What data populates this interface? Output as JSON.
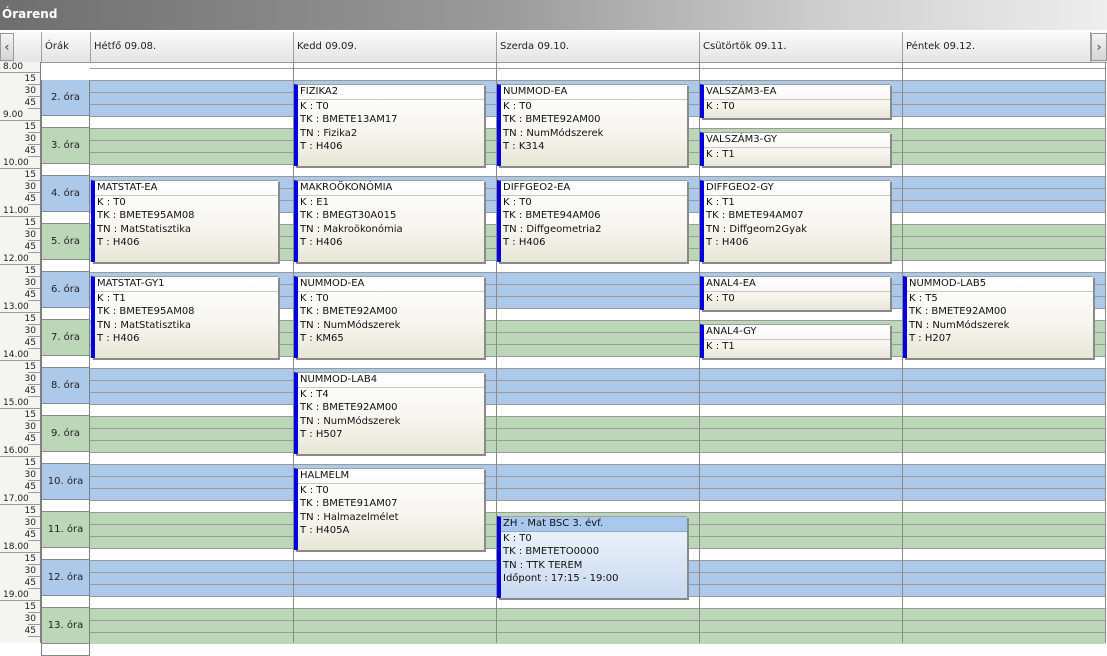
{
  "window": {
    "title": "Órarend"
  },
  "header": {
    "prev_icon": "chevron-left-icon",
    "next_icon": "chevron-right-icon",
    "prev_glyph": "‹",
    "next_glyph": "›",
    "col_label": "Órák",
    "days": [
      "Hétfő  09.08.",
      "Kedd  09.09.",
      "Szerda  09.10.",
      "Csütörtök  09.11.",
      "Péntek  09.12."
    ]
  },
  "time_labels": [
    "8.00",
    "15",
    "30",
    "45",
    "9.00",
    "15",
    "30",
    "45",
    "10.00",
    "15",
    "30",
    "45",
    "11.00",
    "15",
    "30",
    "45",
    "12.00",
    "15",
    "30",
    "45",
    "13.00",
    "15",
    "30",
    "45",
    "14.00",
    "15",
    "30",
    "45",
    "15.00",
    "15",
    "30",
    "45",
    "16.00",
    "15",
    "30",
    "45",
    "17.00",
    "15",
    "30",
    "45",
    "18.00",
    "15",
    "30",
    "45",
    "19.00",
    "15",
    "30",
    "45"
  ],
  "ora_labels": [
    "2. óra",
    "3. óra",
    "4. óra",
    "5. óra",
    "6. óra",
    "7. óra",
    "8. óra",
    "9. óra",
    "10. óra",
    "11. óra",
    "12. óra",
    "13. óra"
  ],
  "colors": {
    "blue_band": "#adc9ea",
    "green_band": "#bcd7b8",
    "white_band": "#ffffff",
    "event_bar": "#0000e0",
    "zh_header": "#a8c8ee"
  },
  "events": [
    {
      "title": "MATSTAT-EA",
      "lines": [
        "K : T0",
        "TK : BMETE95AM08",
        "TN : MatStatisztika",
        "T : H406"
      ]
    },
    {
      "title": "MATSTAT-GY1",
      "lines": [
        "K : T1",
        "TK : BMETE95AM08",
        "TN : MatStatisztika",
        "T : H406"
      ]
    },
    {
      "title": "FIZIKA2",
      "lines": [
        "K : T0",
        "TK : BMETE13AM17",
        "TN : Fizika2",
        "T : H406"
      ]
    },
    {
      "title": "MAKROÖKONÓMIA",
      "lines": [
        "K : E1",
        "TK : BMEGT30A015",
        "TN : Makroökonómia",
        "T : H406"
      ]
    },
    {
      "title": "NUMMOD-EA",
      "lines": [
        "K : T0",
        "TK : BMETE92AM00",
        "TN : NumMódszerek",
        "T : KM65"
      ]
    },
    {
      "title": "NUMMOD-LAB4",
      "lines": [
        "K : T4",
        "TK : BMETE92AM00",
        "TN : NumMódszerek",
        "T : H507"
      ]
    },
    {
      "title": "HALMELM",
      "lines": [
        "K : T0",
        "TK : BMETE91AM07",
        "TN : Halmazelmélet",
        "T : H405A"
      ]
    },
    {
      "title": "NUMMOD-EA",
      "lines": [
        "K : T0",
        "TK : BMETE92AM00",
        "TN : NumMódszerek",
        "T : K314"
      ]
    },
    {
      "title": "DIFFGEO2-EA",
      "lines": [
        "K : T0",
        "TK : BMETE94AM06",
        "TN : Diffgeometria2",
        "T : H406"
      ]
    },
    {
      "title": "ZH - Mat BSC 3. évf.",
      "lines": [
        "K : T0",
        "TK : BMETETO0000",
        "TN : TTK TEREM",
        "Időpont : 17:15 - 19:00"
      ]
    },
    {
      "title": "VALSZÁM3-EA",
      "lines": [
        "K : T0"
      ]
    },
    {
      "title": "VALSZÁM3-GY",
      "lines": [
        "K : T1"
      ]
    },
    {
      "title": "DIFFGEO2-GY",
      "lines": [
        "K : T1",
        "TK : BMETE94AM07",
        "TN : Diffgeom2Gyak",
        "T : H406"
      ]
    },
    {
      "title": "ANAL4-EA",
      "lines": [
        "K : T0"
      ]
    },
    {
      "title": "ANAL4-GY",
      "lines": [
        "K : T1"
      ]
    },
    {
      "title": "NUMMOD-LAB5",
      "lines": [
        "K : T5",
        "TK : BMETE92AM00",
        "TN : NumMódszerek",
        "T : H207"
      ]
    }
  ]
}
